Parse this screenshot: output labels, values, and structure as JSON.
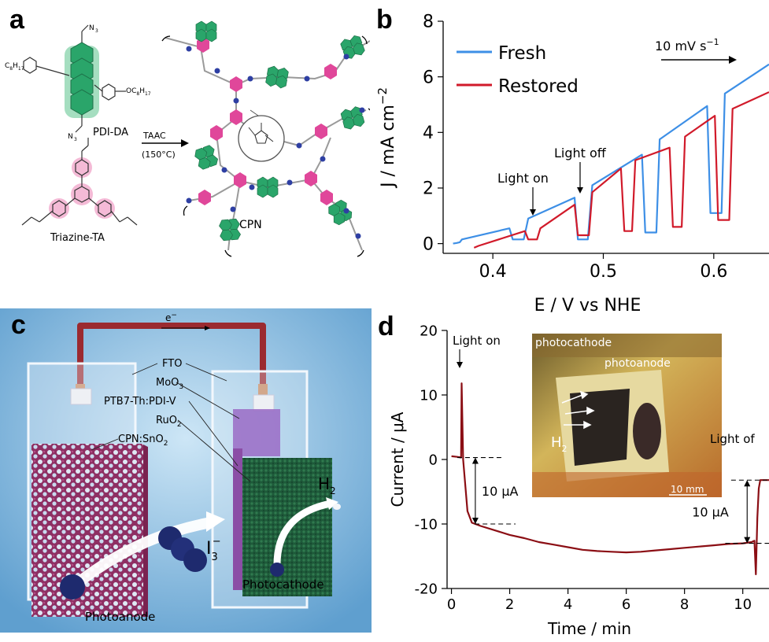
{
  "panels": {
    "a": {
      "letter": "a",
      "labels": {
        "pdi_da": "PDI-DA",
        "triazine_ta": "Triazine-TA",
        "taac": "TAAC",
        "temp": "(150°C)",
        "cpn": "CPN",
        "n3_top": "N",
        "n3_top_sub": "3",
        "n3_bot": "N",
        "n3_bot_sub": "3",
        "c8h17o_left": "C",
        "c8h17o_left_sub": "8",
        "c8h17o_left_h": "H",
        "c8h17o_left_h_sub": "17",
        "och_right": "OC",
        "och_right_sub": "8",
        "och_right_h": "H",
        "och_right_h_sub": "17"
      },
      "colors": {
        "pdi": "#2aa56a",
        "triazine": "#e0479a",
        "node": "#2e3fa3"
      }
    },
    "b": {
      "letter": "b",
      "annotations": {
        "light_on": "Light on",
        "light_off": "Light off",
        "scan_rate_base": "10 mV s",
        "scan_rate_sup": "−1"
      },
      "legend": [
        {
          "name": "Fresh",
          "color": "#3d8fe6"
        },
        {
          "name": "Restored",
          "color": "#d11a2a"
        }
      ]
    },
    "c": {
      "letter": "c",
      "labels": {
        "electron": "e",
        "electron_sup": "−",
        "fto": "FTO",
        "moo3": "MoO",
        "moo3_sub": "3",
        "ptb7": "PTB7-Th:PDI-V",
        "ruo2": "RuO",
        "ruo2_sub": "2",
        "cpn_sno2": "CPN:SnO",
        "cpn_sno2_sub": "2",
        "i3": "I",
        "i3_sub": "3",
        "i3_sup": "−",
        "h2": "H",
        "h2_sub": "2",
        "photocathode": "Photocathode",
        "photoanode": "Photoanode"
      }
    },
    "d": {
      "letter": "d",
      "annotations": {
        "light_on": "Light on",
        "light_off": "Light of",
        "delta_left": "10 μA",
        "delta_right": "10 μA"
      },
      "inset": {
        "photocathode": "photocathode",
        "photoanode": "photoanode",
        "h2": "H",
        "h2_sub": "2",
        "scale": "10 mm"
      }
    }
  },
  "chart_data": [
    {
      "type": "line",
      "panel": "b",
      "title": "",
      "xlabel": "E / V vs NHE",
      "ylabel": "J / mA cm",
      "ylabel_sup": "−2",
      "xlim": [
        0.355,
        0.65
      ],
      "ylim": [
        -0.35,
        8
      ],
      "xticks": [
        0.4,
        0.5,
        0.6
      ],
      "xtick_labels": [
        "0.4",
        "0.5",
        "0.6"
      ],
      "yticks": [
        0,
        2,
        4,
        6,
        8
      ],
      "ytick_labels": [
        "0",
        "2",
        "4",
        "6",
        "8"
      ],
      "legend_position": "top-left",
      "series": [
        {
          "name": "Fresh",
          "color": "#3d8fe6",
          "x": [
            0.364,
            0.367,
            0.37,
            0.372,
            0.415,
            0.418,
            0.428,
            0.432,
            0.474,
            0.477,
            0.486,
            0.49,
            0.535,
            0.538,
            0.548,
            0.551,
            0.594,
            0.597,
            0.607,
            0.61,
            0.65
          ],
          "y": [
            0.0,
            0.02,
            0.05,
            0.15,
            0.55,
            0.15,
            0.15,
            0.9,
            1.65,
            0.15,
            0.15,
            2.1,
            3.2,
            0.4,
            0.4,
            3.75,
            4.95,
            1.1,
            1.1,
            5.4,
            6.45
          ]
        },
        {
          "name": "Restored",
          "color": "#d11a2a",
          "x": [
            0.383,
            0.387,
            0.429,
            0.432,
            0.44,
            0.443,
            0.474,
            0.477,
            0.487,
            0.49,
            0.516,
            0.519,
            0.526,
            0.529,
            0.56,
            0.563,
            0.571,
            0.574,
            0.601,
            0.604,
            0.614,
            0.617,
            0.65
          ],
          "y": [
            -0.15,
            -0.08,
            0.45,
            0.15,
            0.15,
            0.55,
            1.4,
            0.3,
            0.3,
            1.85,
            2.7,
            0.45,
            0.45,
            3.0,
            3.45,
            0.6,
            0.6,
            3.85,
            4.6,
            0.85,
            0.85,
            4.85,
            5.45
          ]
        }
      ]
    },
    {
      "type": "line",
      "panel": "d",
      "title": "",
      "xlabel": "Time / min",
      "ylabel": "Current / μA",
      "xlim": [
        -0.15,
        10.9
      ],
      "ylim": [
        -20,
        20
      ],
      "xticks": [
        0,
        2,
        4,
        6,
        8,
        10
      ],
      "xtick_labels": [
        "0",
        "2",
        "4",
        "6",
        "8",
        "10"
      ],
      "yticks": [
        -20,
        -10,
        0,
        10,
        20
      ],
      "ytick_labels": [
        "-20",
        "-10",
        "0",
        "10",
        "20"
      ],
      "series": [
        {
          "name": "",
          "color": "#8b0e14",
          "x": [
            0,
            0.2,
            0.33,
            0.35,
            0.4,
            0.55,
            0.7,
            1.0,
            1.5,
            2.0,
            2.5,
            3.0,
            3.5,
            4.0,
            4.5,
            5.0,
            5.5,
            6.0,
            6.5,
            7.0,
            7.5,
            8.0,
            8.5,
            9.0,
            9.5,
            10.0,
            10.3,
            10.4,
            10.45,
            10.5,
            10.55,
            10.6,
            10.9
          ],
          "y": [
            0.5,
            0.4,
            0.3,
            11.8,
            0.0,
            -8.0,
            -9.8,
            -10.3,
            -11.0,
            -11.7,
            -12.2,
            -12.8,
            -13.2,
            -13.6,
            -14.0,
            -14.2,
            -14.3,
            -14.4,
            -14.3,
            -14.1,
            -13.9,
            -13.7,
            -13.5,
            -13.3,
            -13.1,
            -13.0,
            -12.8,
            -12.6,
            -17.8,
            -9.0,
            -4.5,
            -3.2,
            -3.2
          ]
        }
      ]
    }
  ]
}
